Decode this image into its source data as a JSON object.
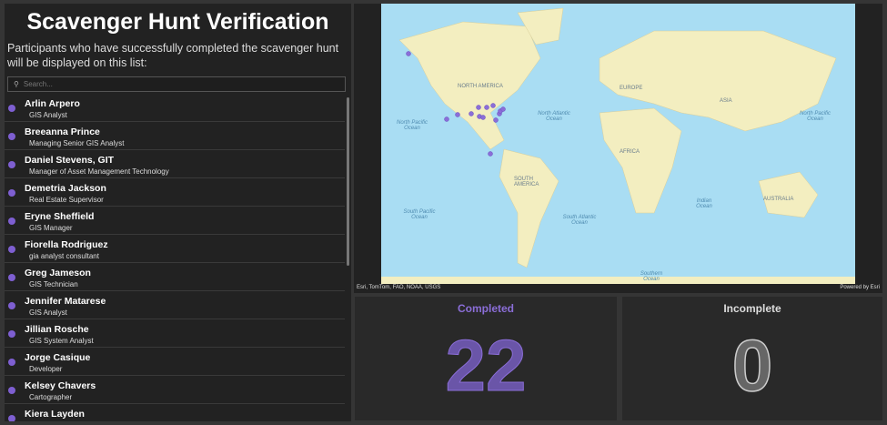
{
  "header": {
    "title": "Scavenger Hunt Verification",
    "description": "Participants who have successfully completed the scavenger hunt will be displayed on this list:"
  },
  "search": {
    "placeholder": "Search..."
  },
  "participants": [
    {
      "name": "Arlin Arpero",
      "title": "GIS Analyst"
    },
    {
      "name": "Breeanna Prince",
      "title": "Managing Senior GIS Analyst"
    },
    {
      "name": "Daniel Stevens, GIT",
      "title": "Manager of Asset Management Technology"
    },
    {
      "name": "Demetria Jackson",
      "title": "Real Estate Supervisor"
    },
    {
      "name": "Eryne Sheffield",
      "title": "GIS Manager"
    },
    {
      "name": "Fiorella Rodriguez",
      "title": "gia analyst consultant"
    },
    {
      "name": "Greg Jameson",
      "title": "GIS Technician"
    },
    {
      "name": "Jennifer Matarese",
      "title": "GIS Analyst"
    },
    {
      "name": "Jillian Rosche",
      "title": "GIS System Analyst"
    },
    {
      "name": "Jorge Casique",
      "title": "Developer"
    },
    {
      "name": "Kelsey Chavers",
      "title": "Cartographer"
    },
    {
      "name": "Kiera Layden",
      "title": ""
    }
  ],
  "map": {
    "attribution": "Esri, TomTom, FAO, NOAA, USGS",
    "powered_by": "Powered by Esri",
    "labels": {
      "north_america": "NORTH AMERICA",
      "europe": "EUROPE",
      "asia": "ASIA",
      "africa": "AFRICA",
      "south_america": "SOUTH AMERICA",
      "australia": "AUSTRALIA",
      "north_pacific_left": "North Pacific Ocean",
      "north_pacific_right": "North Pacific Ocean",
      "north_atlantic": "North Atlantic Ocean",
      "south_pacific": "South Pacific Ocean",
      "south_atlantic": "South Atlantic Ocean",
      "indian": "Indian Ocean",
      "southern": "Southern Ocean"
    }
  },
  "indicators": {
    "completed": {
      "label": "Completed",
      "value": "22",
      "color": "#7e5fd1"
    },
    "incomplete": {
      "label": "Incomplete",
      "value": "0",
      "color": "#666666"
    }
  }
}
